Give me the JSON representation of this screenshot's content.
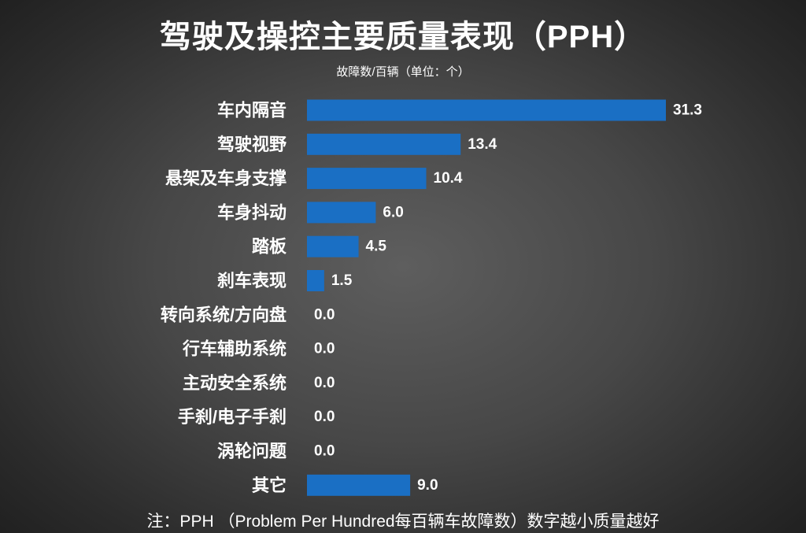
{
  "title": "驾驶及操控主要质量表现（PPH）",
  "subtitle": "故障数/百辆（单位：个）",
  "footnote": "注：PPH （Problem Per Hundred每百辆车故障数）数字越小质量越好",
  "colors": {
    "bar": "#1a6fc4",
    "text": "#ffffff"
  },
  "chart_data": {
    "type": "bar",
    "orientation": "horizontal",
    "title": "驾驶及操控主要质量表现（PPH）",
    "subtitle": "故障数/百辆（单位：个）",
    "categories": [
      "车内隔音",
      "驾驶视野",
      "悬架及车身支撑",
      "车身抖动",
      "踏板",
      "刹车表现",
      "转向系统/方向盘",
      "行车辅助系统",
      "主动安全系统",
      "手刹/电子手刹",
      "涡轮问题",
      "其它"
    ],
    "values": [
      31.3,
      13.4,
      10.4,
      6.0,
      4.5,
      1.5,
      0.0,
      0.0,
      0.0,
      0.0,
      0.0,
      9.0
    ],
    "value_labels": [
      "31.3",
      "13.4",
      "10.4",
      "6.0",
      "4.5",
      "1.5",
      "0.0",
      "0.0",
      "0.0",
      "0.0",
      "0.0",
      "9.0"
    ],
    "xlim": [
      0,
      31.3
    ],
    "grid": false,
    "legend": "none"
  }
}
